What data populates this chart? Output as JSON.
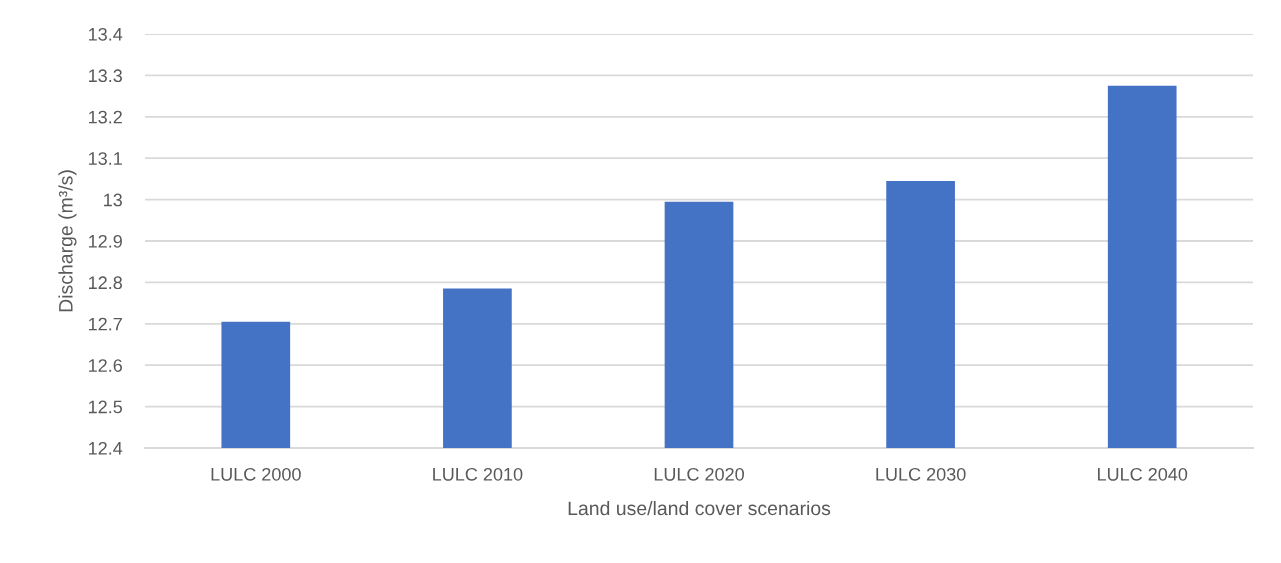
{
  "chart_data": {
    "type": "bar",
    "xlabel": "Land use/land cover scenarios",
    "ylabel": "Discharge (m³/s)",
    "categories": [
      "LULC 2000",
      "LULC 2010",
      "LULC 2020",
      "LULC 2030",
      "LULC 2040"
    ],
    "values": [
      12.705,
      12.785,
      12.995,
      13.045,
      13.275
    ],
    "color": "#4472c4",
    "ylim": [
      12.4,
      13.4
    ],
    "yticks": [
      12.4,
      12.5,
      12.6,
      12.7,
      12.8,
      12.9,
      13,
      13.1,
      13.2,
      13.3,
      13.4
    ],
    "grid": "y",
    "legend": false
  }
}
